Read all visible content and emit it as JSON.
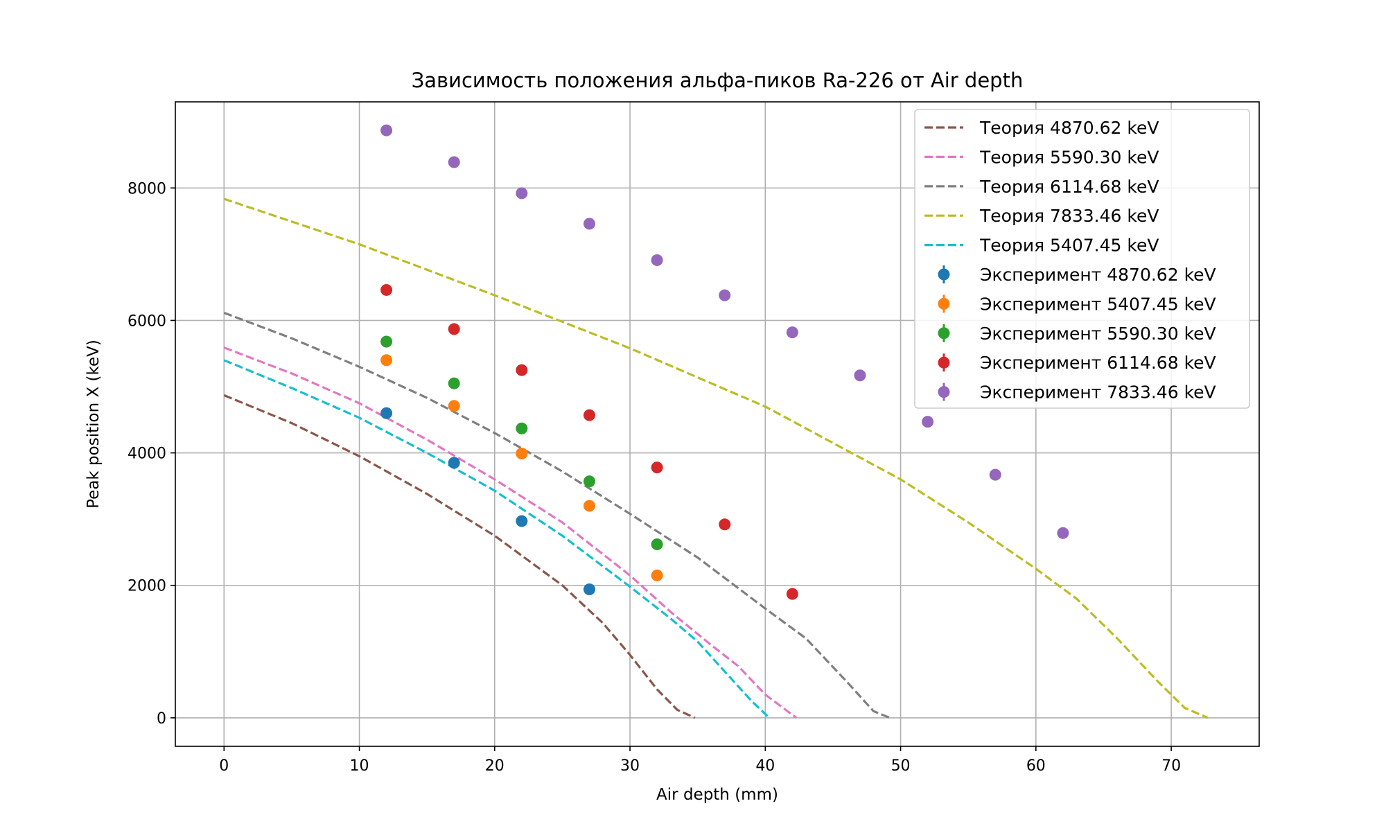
{
  "chart_data": {
    "type": "scatter",
    "title": "Зависимость положения альфа-пиков Ra-226 от Air depth",
    "xlabel": "Air depth (mm)",
    "ylabel": "Peak position X (keV)",
    "xlim": [
      -3.6,
      76.5
    ],
    "ylim": [
      -430,
      9300
    ],
    "xticks": [
      0,
      10,
      20,
      30,
      40,
      50,
      60,
      70
    ],
    "yticks": [
      0,
      2000,
      4000,
      6000,
      8000
    ],
    "grid": true,
    "legend_position": "top-right",
    "theory_series": [
      {
        "name": "Теория 4870.62 keV",
        "color": "#8c564b",
        "points": [
          [
            0,
            4870
          ],
          [
            5,
            4450
          ],
          [
            10,
            3950
          ],
          [
            15,
            3380
          ],
          [
            20,
            2750
          ],
          [
            25,
            2000
          ],
          [
            28,
            1430
          ],
          [
            30,
            950
          ],
          [
            32,
            430
          ],
          [
            33.5,
            120
          ],
          [
            34.8,
            0
          ]
        ]
      },
      {
        "name": "Теория 5590.30 keV",
        "color": "#e377c2",
        "points": [
          [
            0,
            5590
          ],
          [
            5,
            5200
          ],
          [
            10,
            4750
          ],
          [
            15,
            4200
          ],
          [
            20,
            3600
          ],
          [
            25,
            2950
          ],
          [
            30,
            2150
          ],
          [
            33,
            1600
          ],
          [
            36,
            1100
          ],
          [
            38,
            780
          ],
          [
            40,
            350
          ],
          [
            42.3,
            0
          ]
        ]
      },
      {
        "name": "Теория 6114.68 keV",
        "color": "#7f7f7f",
        "points": [
          [
            0,
            6115
          ],
          [
            5,
            5730
          ],
          [
            10,
            5300
          ],
          [
            15,
            4830
          ],
          [
            20,
            4300
          ],
          [
            25,
            3720
          ],
          [
            30,
            3080
          ],
          [
            35,
            2420
          ],
          [
            40,
            1650
          ],
          [
            43,
            1200
          ],
          [
            46,
            550
          ],
          [
            48,
            100
          ],
          [
            49.2,
            0
          ]
        ]
      },
      {
        "name": "Теория 7833.46 keV",
        "color": "#bcbd22",
        "points": [
          [
            0,
            7835
          ],
          [
            10,
            7150
          ],
          [
            20,
            6380
          ],
          [
            30,
            5580
          ],
          [
            40,
            4700
          ],
          [
            50,
            3600
          ],
          [
            55,
            2950
          ],
          [
            60,
            2250
          ],
          [
            63,
            1800
          ],
          [
            66,
            1200
          ],
          [
            69,
            550
          ],
          [
            71,
            150
          ],
          [
            72.7,
            0
          ]
        ]
      },
      {
        "name": "Теория 5407.45 keV",
        "color": "#17becf",
        "points": [
          [
            0,
            5400
          ],
          [
            5,
            4980
          ],
          [
            10,
            4530
          ],
          [
            15,
            4000
          ],
          [
            20,
            3430
          ],
          [
            25,
            2750
          ],
          [
            30,
            1980
          ],
          [
            33,
            1500
          ],
          [
            35,
            1150
          ],
          [
            37,
            700
          ],
          [
            39,
            250
          ],
          [
            40.3,
            0
          ]
        ]
      }
    ],
    "experiment_series": [
      {
        "name": "Эксперимент 4870.62 keV",
        "color": "#1f77b4",
        "x": [
          12,
          17,
          22,
          27
        ],
        "y": [
          4600,
          3850,
          2970,
          1940
        ]
      },
      {
        "name": "Эксперимент 5407.45 keV",
        "color": "#ff7f0e",
        "x": [
          12,
          17,
          22,
          27,
          32
        ],
        "y": [
          5400,
          4710,
          3990,
          3200,
          2150
        ]
      },
      {
        "name": "Эксперимент 5590.30 keV",
        "color": "#2ca02c",
        "x": [
          12,
          17,
          22,
          27,
          32
        ],
        "y": [
          5680,
          5050,
          4370,
          3570,
          2620
        ]
      },
      {
        "name": "Эксперимент 6114.68 keV",
        "color": "#d62728",
        "x": [
          12,
          17,
          22,
          27,
          32,
          37,
          42
        ],
        "y": [
          6460,
          5870,
          5250,
          4570,
          3780,
          2920,
          1870
        ]
      },
      {
        "name": "Эксперимент 7833.46 keV",
        "color": "#9467bd",
        "x": [
          12,
          17,
          22,
          27,
          32,
          37,
          42,
          47,
          52,
          57,
          62
        ],
        "y": [
          8870,
          8390,
          7920,
          7460,
          6910,
          6380,
          5820,
          5170,
          4470,
          3670,
          2790
        ]
      }
    ]
  }
}
